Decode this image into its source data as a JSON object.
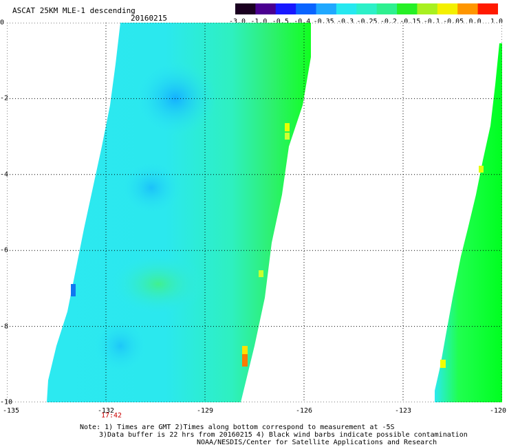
{
  "header": {
    "title": "ASCAT 25KM MLE-1 descending",
    "date": "20160215"
  },
  "colorbar": {
    "labels": [
      "-3.0",
      "-1.0",
      "-0.5",
      "-0.4",
      "-0.35",
      "-0.3",
      "-0.25",
      "-0.2",
      "-0.15",
      "-0.1",
      "-0.05",
      "0.0",
      "1.0"
    ],
    "colors": [
      "#1a0020",
      "#4a0090",
      "#1818ff",
      "#0a64ff",
      "#20a8ff",
      "#26e8f0",
      "#2df0c8",
      "#2ef090",
      "#26f026",
      "#a8f020",
      "#f4f000",
      "#ff9600",
      "#ff1a00"
    ]
  },
  "axes": {
    "y_ticks": [
      "0",
      "-2",
      "-4",
      "-6",
      "-8",
      "-10"
    ],
    "x_ticks": [
      "-135",
      "-132",
      "-129",
      "-126",
      "-123",
      "-120"
    ],
    "y_range": [
      -10,
      0
    ],
    "x_range": [
      -135,
      -120
    ],
    "grid": "dotted"
  },
  "swath_time": "17:42",
  "notes": {
    "line1": "Note: 1) Times are GMT 2)Times along bottom correspond to measurement at -5S",
    "line2": "3)Data buffer is 22 hrs from 20160215 4) Black wind barbs indicate possible contamination",
    "line3": "NOAA/NESDIS/Center for Satellite Applications and Research"
  },
  "colors": {
    "main_swath": "#2ef0d8",
    "edge_green": "#00ff28",
    "deep_blue": "#10a8ff",
    "bright_green": "#66ff00",
    "yellow": "#ffff00",
    "orange": "#ff8800"
  }
}
